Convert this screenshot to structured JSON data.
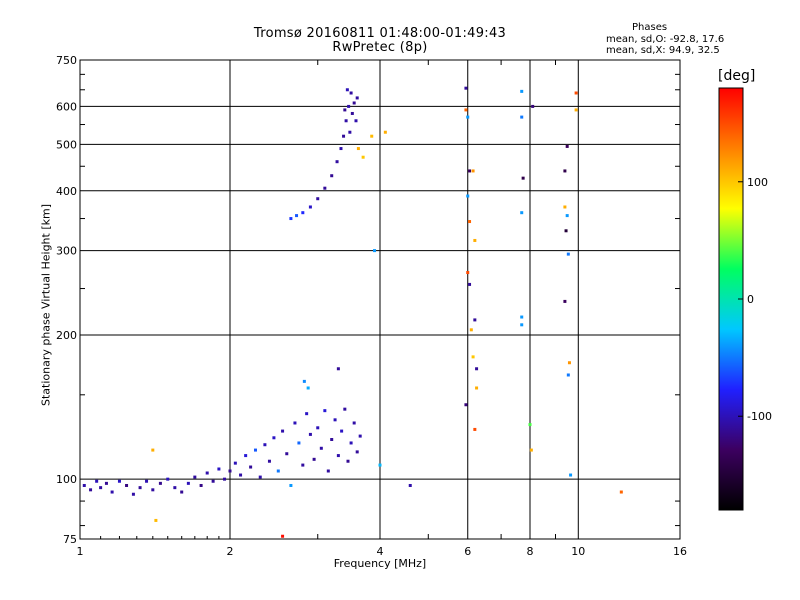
{
  "chart_data": {
    "type": "scatter",
    "title": "Tromsø 20160811 01:48:00-01:49:43",
    "subtitle": "RwPretec (8p)",
    "xlabel": "Frequency [MHz]",
    "ylabel": "Stationary phase Virtual Height [km]",
    "x_scale": "log",
    "y_scale": "log",
    "xlim": [
      1,
      16
    ],
    "ylim": [
      75,
      750
    ],
    "grid": true,
    "x_ticks": [
      1,
      2,
      4,
      6,
      8,
      10,
      16
    ],
    "x_tick_labels": [
      "1",
      "2",
      "4",
      "6",
      "8",
      "10",
      "16"
    ],
    "y_ticks": [
      75,
      100,
      200,
      300,
      400,
      500,
      600,
      750
    ],
    "y_tick_labels": [
      "75",
      "100",
      "200",
      "300",
      "400",
      "500",
      "600",
      "750"
    ],
    "phase_stats": {
      "heading": "Phases",
      "o_line": "mean, sd,O: -92.8, 17.6",
      "x_line": "mean, sd,X:  94.9, 32.5"
    },
    "colorbar": {
      "label": "[deg]",
      "range": [
        -180,
        180
      ],
      "ticks": [
        100,
        0,
        -100
      ],
      "tick_labels": [
        "100",
        "0",
        "-100"
      ],
      "colors": [
        "#000000",
        "#3c0060",
        "#2020ff",
        "#00c8ff",
        "#00ff60",
        "#ffff00",
        "#ff8000",
        "#ff0000"
      ]
    },
    "series": [
      {
        "points": [
          [
            1.02,
            97,
            -105
          ],
          [
            1.05,
            95,
            -110
          ],
          [
            1.08,
            99,
            -100
          ],
          [
            1.1,
            96,
            -108
          ],
          [
            1.13,
            98,
            -112
          ],
          [
            1.16,
            94,
            -104
          ],
          [
            1.2,
            99,
            -96
          ],
          [
            1.24,
            97,
            -118
          ],
          [
            1.28,
            93,
            -106
          ],
          [
            1.32,
            96,
            -110
          ],
          [
            1.36,
            99,
            -102
          ],
          [
            1.4,
            95,
            -108
          ],
          [
            1.45,
            98,
            -114
          ],
          [
            1.5,
            100,
            -98
          ],
          [
            1.55,
            96,
            -106
          ],
          [
            1.6,
            94,
            -112
          ],
          [
            1.65,
            98,
            -100
          ],
          [
            1.7,
            101,
            -108
          ],
          [
            1.75,
            97,
            -116
          ],
          [
            1.8,
            103,
            -104
          ],
          [
            1.85,
            99,
            -110
          ],
          [
            1.9,
            105,
            -96
          ],
          [
            1.95,
            100,
            -108
          ],
          [
            2.0,
            104,
            -112
          ],
          [
            2.05,
            108,
            -100
          ],
          [
            2.1,
            102,
            -106
          ],
          [
            2.15,
            112,
            -90
          ],
          [
            2.2,
            106,
            -110
          ],
          [
            2.25,
            115,
            -60
          ],
          [
            2.3,
            101,
            -104
          ],
          [
            2.35,
            118,
            -100
          ],
          [
            2.4,
            109,
            -108
          ],
          [
            2.45,
            122,
            -96
          ],
          [
            2.5,
            104,
            -50
          ],
          [
            2.55,
            126,
            -104
          ],
          [
            2.6,
            113,
            -110
          ],
          [
            2.65,
            97,
            -40
          ],
          [
            2.7,
            131,
            -100
          ],
          [
            2.75,
            119,
            -55
          ],
          [
            2.8,
            107,
            -108
          ],
          [
            2.85,
            137,
            -96
          ],
          [
            2.9,
            124,
            -104
          ],
          [
            2.95,
            110,
            -112
          ],
          [
            3.0,
            128,
            -100
          ],
          [
            3.05,
            116,
            -106
          ],
          [
            3.1,
            139,
            -90
          ],
          [
            3.15,
            104,
            -108
          ],
          [
            3.2,
            121,
            -110
          ],
          [
            3.25,
            133,
            -100
          ],
          [
            3.3,
            112,
            -104
          ],
          [
            3.35,
            126,
            -96
          ],
          [
            3.4,
            140,
            -108
          ],
          [
            3.45,
            109,
            -112
          ],
          [
            3.5,
            119,
            -100
          ],
          [
            3.55,
            131,
            -106
          ],
          [
            3.6,
            114,
            -110
          ],
          [
            3.65,
            123,
            -104
          ],
          [
            2.82,
            160,
            -45
          ],
          [
            2.87,
            155,
            -35
          ],
          [
            3.3,
            170,
            -110
          ],
          [
            2.65,
            350,
            -70
          ],
          [
            2.72,
            355,
            -60
          ],
          [
            2.8,
            360,
            -75
          ],
          [
            2.9,
            370,
            -95
          ],
          [
            3.0,
            385,
            -108
          ],
          [
            3.1,
            405,
            -110
          ],
          [
            3.2,
            430,
            -112
          ],
          [
            3.28,
            460,
            -108
          ],
          [
            3.34,
            490,
            -104
          ],
          [
            3.38,
            520,
            -110
          ],
          [
            3.42,
            560,
            -106
          ],
          [
            3.46,
            600,
            -104
          ],
          [
            3.5,
            640,
            -108
          ],
          [
            3.55,
            610,
            -112
          ],
          [
            3.58,
            560,
            -104
          ],
          [
            3.48,
            530,
            -106
          ],
          [
            3.52,
            580,
            -110
          ],
          [
            3.44,
            650,
            -100
          ],
          [
            3.6,
            625,
            -108
          ],
          [
            3.4,
            590,
            -112
          ],
          [
            3.62,
            490,
            110
          ],
          [
            3.7,
            470,
            100
          ],
          [
            3.85,
            520,
            105
          ],
          [
            4.1,
            530,
            110
          ],
          [
            3.9,
            300,
            -40
          ],
          [
            4.0,
            107,
            -30
          ],
          [
            4.6,
            97,
            -105
          ],
          [
            1.4,
            115,
            110
          ],
          [
            1.42,
            82,
            105
          ],
          [
            2.55,
            76,
            175
          ],
          [
            5.95,
            655,
            -110
          ],
          [
            5.95,
            590,
            140
          ],
          [
            6.0,
            570,
            -40
          ],
          [
            6.05,
            440,
            -130
          ],
          [
            6.15,
            440,
            120
          ],
          [
            6.0,
            390,
            -40
          ],
          [
            6.05,
            345,
            140
          ],
          [
            6.2,
            315,
            110
          ],
          [
            6.0,
            270,
            150
          ],
          [
            6.05,
            255,
            -110
          ],
          [
            6.2,
            215,
            -110
          ],
          [
            6.1,
            205,
            110
          ],
          [
            6.15,
            180,
            100
          ],
          [
            6.25,
            170,
            -110
          ],
          [
            6.25,
            155,
            110
          ],
          [
            5.95,
            143,
            -120
          ],
          [
            6.2,
            127,
            150
          ],
          [
            7.7,
            645,
            -40
          ],
          [
            7.7,
            570,
            -50
          ],
          [
            7.75,
            425,
            -140
          ],
          [
            7.7,
            360,
            -40
          ],
          [
            7.7,
            218,
            -40
          ],
          [
            7.7,
            210,
            -40
          ],
          [
            8.1,
            600,
            -120
          ],
          [
            8.0,
            130,
            40
          ],
          [
            8.05,
            115,
            110
          ],
          [
            9.5,
            495,
            -130
          ],
          [
            9.4,
            440,
            -140
          ],
          [
            9.4,
            370,
            110
          ],
          [
            9.5,
            355,
            -40
          ],
          [
            9.45,
            330,
            -150
          ],
          [
            9.55,
            295,
            -50
          ],
          [
            9.4,
            235,
            -130
          ],
          [
            9.6,
            175,
            120
          ],
          [
            9.55,
            165,
            -50
          ],
          [
            9.65,
            102,
            -40
          ],
          [
            9.9,
            640,
            150
          ],
          [
            9.9,
            590,
            110
          ],
          [
            12.2,
            94,
            140
          ]
        ]
      }
    ]
  }
}
